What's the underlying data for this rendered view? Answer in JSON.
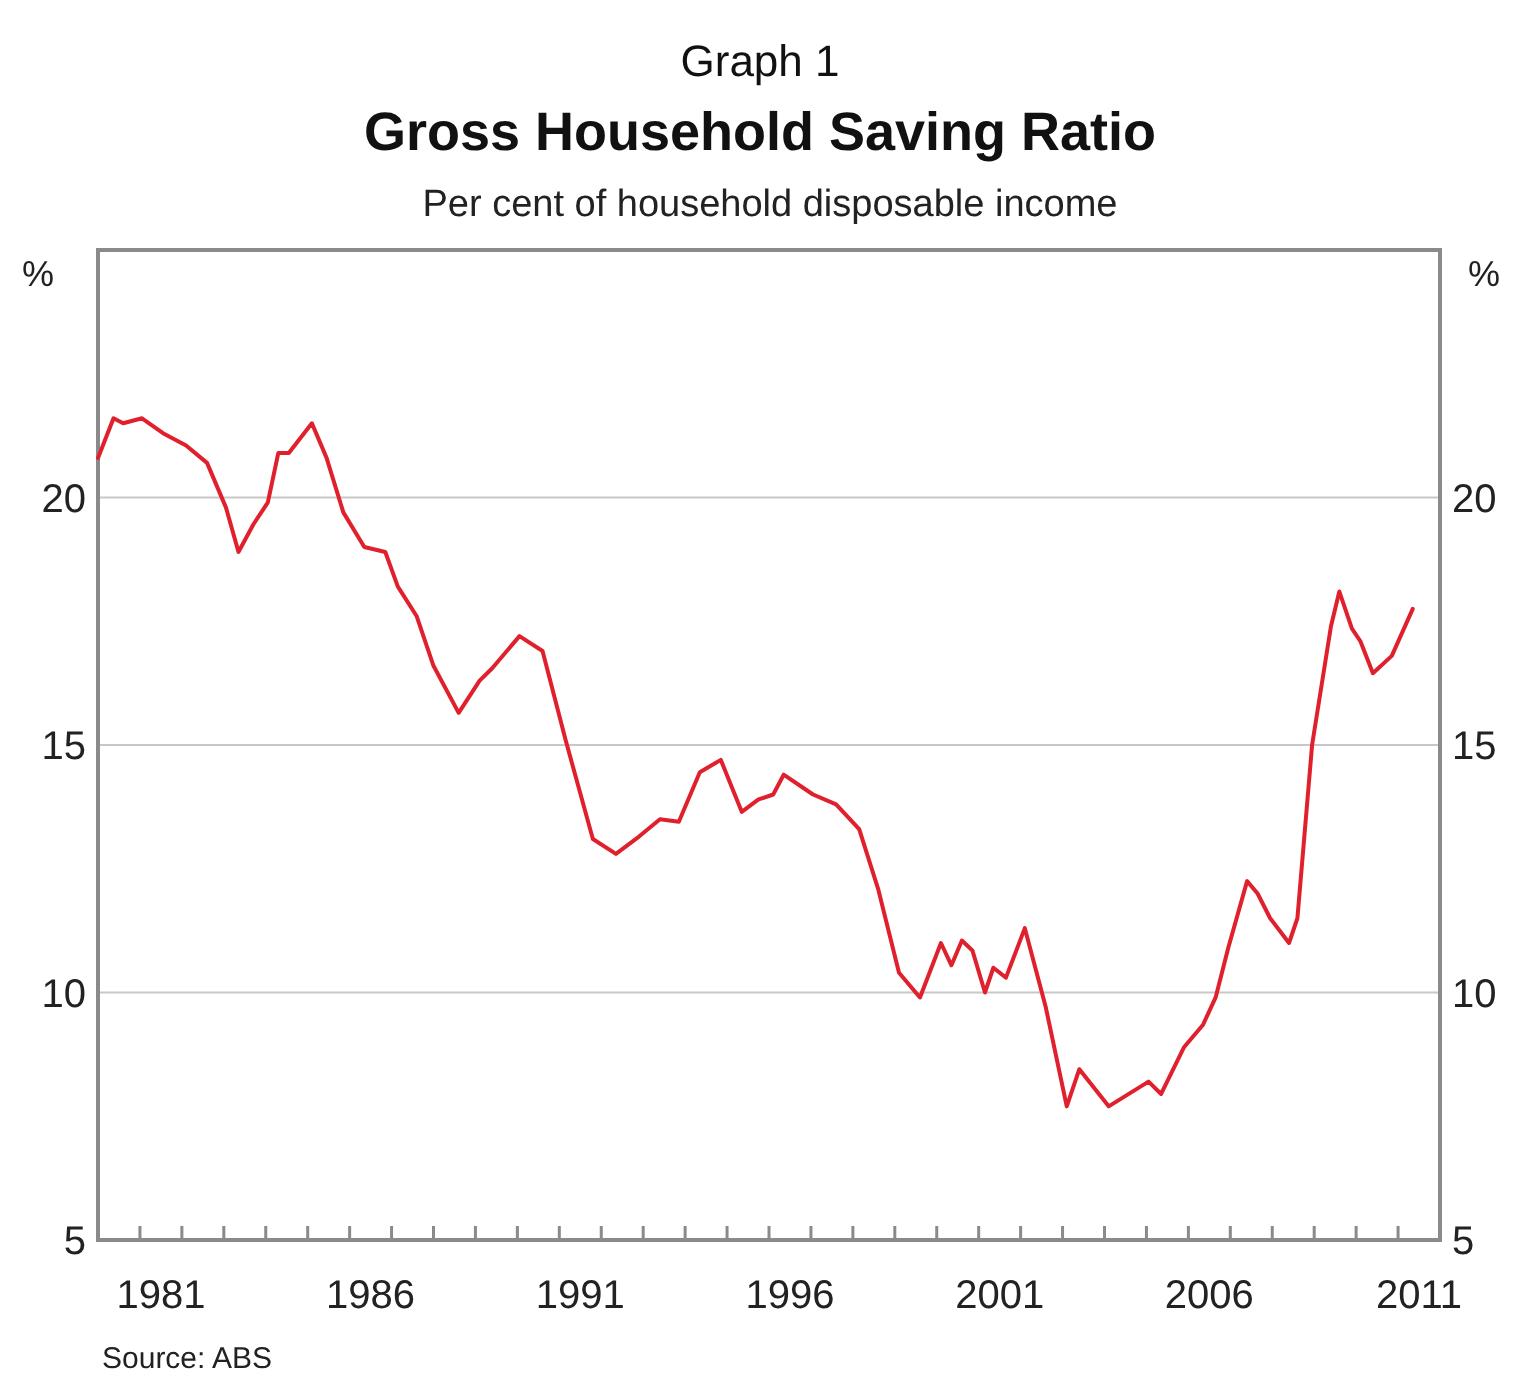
{
  "chart_data": {
    "type": "line",
    "title": "Gross Household Saving Ratio",
    "subtitle": "Per cent of household disposable income",
    "ylabel": "%",
    "y2label": "%",
    "annotations": [
      "Graph 1",
      "Source: ABS"
    ],
    "x": [
      1980.0,
      1980.37,
      1980.6,
      1981.05,
      1981.55,
      1982.1,
      1982.6,
      1983.05,
      1983.35,
      1983.7,
      1984.05,
      1984.3,
      1984.55,
      1985.1,
      1985.45,
      1985.85,
      1986.35,
      1986.85,
      1987.15,
      1987.6,
      1988.0,
      1988.6,
      1989.1,
      1989.4,
      1990.05,
      1990.6,
      1991.15,
      1991.8,
      1992.35,
      1992.9,
      1993.4,
      1993.85,
      1994.35,
      1994.85,
      1995.35,
      1995.75,
      1996.1,
      1996.35,
      1997.05,
      1997.6,
      1998.15,
      1998.6,
      1999.1,
      1999.6,
      2000.1,
      2000.35,
      2000.6,
      2000.85,
      2001.15,
      2001.35,
      2001.65,
      2002.1,
      2002.6,
      2003.1,
      2003.4,
      2004.1,
      2005.05,
      2005.35,
      2005.9,
      2006.35,
      2006.65,
      2006.95,
      2007.4,
      2007.65,
      2007.95,
      2008.4,
      2008.6,
      2008.95,
      2009.4,
      2009.6,
      2009.9,
      2010.1,
      2010.4,
      2010.85,
      2011.35
    ],
    "series": [
      {
        "color": "#e0202c",
        "values": [
          20.8,
          21.6,
          21.5,
          21.6,
          21.3,
          21.05,
          20.7,
          19.8,
          18.9,
          19.45,
          19.9,
          20.9,
          20.9,
          21.5,
          20.8,
          19.7,
          19.0,
          18.9,
          18.2,
          17.6,
          16.6,
          15.65,
          16.3,
          16.55,
          17.2,
          16.9,
          15.1,
          13.1,
          12.8,
          13.15,
          13.5,
          13.45,
          14.45,
          14.7,
          13.65,
          13.9,
          14.0,
          14.4,
          14.0,
          13.8,
          13.3,
          12.1,
          10.4,
          9.9,
          11.0,
          10.55,
          11.05,
          10.85,
          10.0,
          10.5,
          10.3,
          11.3,
          9.7,
          7.7,
          8.45,
          7.7,
          8.2,
          7.95,
          8.9,
          9.35,
          9.9,
          10.9,
          12.25,
          12.0,
          11.5,
          11.0,
          11.5,
          15.0,
          17.4,
          18.1,
          17.35,
          17.1,
          16.45,
          16.8,
          17.75
        ]
      }
    ],
    "xlim": [
      1980,
      2012
    ],
    "xticks": [
      {
        "value": 1981,
        "label": null
      },
      {
        "value": 1982,
        "label": null
      },
      {
        "value": 1983,
        "label": null
      },
      {
        "value": 1984,
        "label": null
      },
      {
        "value": 1985,
        "label": null
      },
      {
        "value": 1986,
        "label": null
      },
      {
        "value": 1987,
        "label": null
      },
      {
        "value": 1988,
        "label": null
      },
      {
        "value": 1989,
        "label": null
      },
      {
        "value": 1990,
        "label": null
      },
      {
        "value": 1991,
        "label": null
      },
      {
        "value": 1992,
        "label": null
      },
      {
        "value": 1993,
        "label": null
      },
      {
        "value": 1994,
        "label": null
      },
      {
        "value": 1995,
        "label": null
      },
      {
        "value": 1996,
        "label": null
      },
      {
        "value": 1997,
        "label": null
      },
      {
        "value": 1998,
        "label": null
      },
      {
        "value": 1999,
        "label": null
      },
      {
        "value": 2000,
        "label": null
      },
      {
        "value": 2001,
        "label": null
      },
      {
        "value": 2002,
        "label": null
      },
      {
        "value": 2003,
        "label": null
      },
      {
        "value": 2004,
        "label": null
      },
      {
        "value": 2005,
        "label": null
      },
      {
        "value": 2006,
        "label": null
      },
      {
        "value": 2007,
        "label": null
      },
      {
        "value": 2008,
        "label": null
      },
      {
        "value": 2009,
        "label": null
      },
      {
        "value": 2010,
        "label": null
      },
      {
        "value": 2011,
        "label": null
      },
      {
        "value": 1981.5,
        "label": "1981"
      },
      {
        "value": 1986.5,
        "label": "1986"
      },
      {
        "value": 1991.5,
        "label": "1991"
      },
      {
        "value": 1996.5,
        "label": "1996"
      },
      {
        "value": 2001.5,
        "label": "2001"
      },
      {
        "value": 2006.5,
        "label": "2006"
      },
      {
        "value": 2011.5,
        "label": "2011"
      }
    ],
    "ylim": [
      5,
      25
    ],
    "yticks": [
      5,
      10,
      15,
      20
    ],
    "y2lim": [
      5,
      25
    ],
    "y2ticks": [
      5,
      10,
      15,
      20
    ],
    "grid": "y",
    "marker": "none",
    "line_style": "solid"
  }
}
